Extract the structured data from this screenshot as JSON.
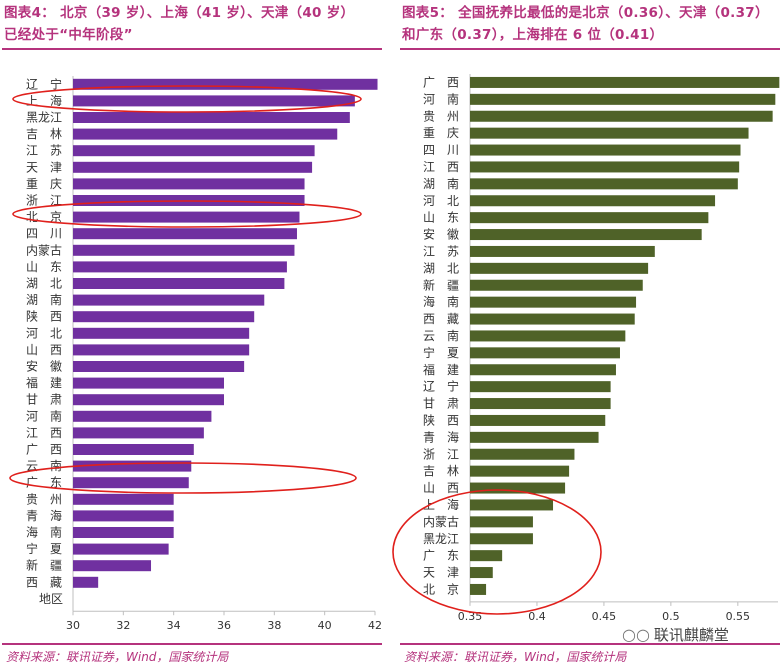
{
  "left_panel": {
    "title_line1": "图表4：  北京（39 岁）、上海（41 岁）、天津（40 岁）",
    "title_line2": "已经处于“中年阶段”",
    "source": "资料来源：联讯证券，Wind，国家统计局"
  },
  "right_panel": {
    "title_line1": "图表5：  全国抚养比最低的是北京（0.36）、天津（0.37）",
    "title_line2": "和广东（0.37），上海排在 6 位（0.41）",
    "source": "资料来源：联讯证券，Wind，国家统计局"
  },
  "watermark": {
    "icon": "wechat-icon",
    "text": "联讯麒麟堂"
  },
  "colors": {
    "title": "#b5337d",
    "left_bar": "#7030a0",
    "right_bar": "#4f6228",
    "highlight": "#e0201c",
    "axis": "#bfbfbf"
  },
  "chart_data": [
    {
      "type": "bar",
      "orientation": "horizontal",
      "title": "",
      "category_axis_label": "地区",
      "xlim": [
        30,
        42
      ],
      "xticks": [
        30,
        32,
        34,
        36,
        38,
        40,
        42
      ],
      "categories": [
        "辽　宁",
        "上　海",
        "黑龙江",
        "吉　林",
        "江　苏",
        "天　津",
        "重　庆",
        "浙　江",
        "北　京",
        "四　川",
        "内蒙古",
        "山　东",
        "湖　北",
        "湖　南",
        "陕　西",
        "河　北",
        "山　西",
        "安　徽",
        "福　建",
        "甘　肃",
        "河　南",
        "江　西",
        "广　西",
        "云　南",
        "广　东",
        "贵　州",
        "青　海",
        "海　南",
        "宁　夏",
        "新　疆",
        "西　藏"
      ],
      "values": [
        42.1,
        41.2,
        41.0,
        40.5,
        39.6,
        39.5,
        39.2,
        39.2,
        39.0,
        38.9,
        38.8,
        38.5,
        38.4,
        37.6,
        37.2,
        37.0,
        37.0,
        36.8,
        36.0,
        36.0,
        35.5,
        35.2,
        34.8,
        34.7,
        34.6,
        34.0,
        34.0,
        34.0,
        33.8,
        33.1,
        31.0
      ],
      "highlighted": [
        "上　海",
        "北　京",
        "广　东"
      ]
    },
    {
      "type": "bar",
      "orientation": "horizontal",
      "title": "",
      "xlim": [
        0.35,
        0.58
      ],
      "xticks": [
        0.35,
        0.4,
        0.45,
        0.5,
        0.55
      ],
      "xtick_labels": [
        "0.35",
        "0.4",
        "0.45",
        "0.5",
        "0.55"
      ],
      "categories": [
        "广　西",
        "河　南",
        "贵　州",
        "重　庆",
        "四　川",
        "江　西",
        "湖　南",
        "河　北",
        "山　东",
        "安　徽",
        "江　苏",
        "湖　北",
        "新　疆",
        "海　南",
        "西　藏",
        "云　南",
        "宁　夏",
        "福　建",
        "辽　宁",
        "甘　肃",
        "陕　西",
        "青　海",
        "浙　江",
        "吉　林",
        "山　西",
        "上　海",
        "内蒙古",
        "黑龙江",
        "广　东",
        "天　津",
        "北　京"
      ],
      "values": [
        0.581,
        0.578,
        0.576,
        0.558,
        0.552,
        0.551,
        0.55,
        0.533,
        0.528,
        0.523,
        0.488,
        0.483,
        0.479,
        0.474,
        0.473,
        0.466,
        0.462,
        0.459,
        0.455,
        0.455,
        0.451,
        0.446,
        0.428,
        0.424,
        0.421,
        0.412,
        0.397,
        0.397,
        0.374,
        0.367,
        0.362
      ],
      "highlighted": [
        "上　海",
        "内蒙古",
        "黑龙江",
        "广　东",
        "天　津",
        "北　京"
      ]
    }
  ]
}
